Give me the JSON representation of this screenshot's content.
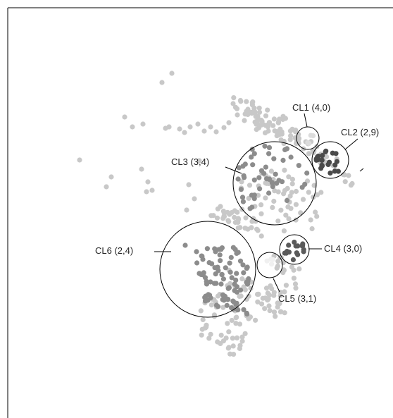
{
  "clusters": [
    {
      "id": "CL1",
      "label": "CL1 (4,0)",
      "shade": "#dcdcdc"
    },
    {
      "id": "CL2",
      "label": "CL2 (2,9)",
      "shade": "#4a4a4a"
    },
    {
      "id": "CL3",
      "label": "CL3 (3,4)",
      "shade": "#8c8c8c"
    },
    {
      "id": "CL4",
      "label": "CL4 (3,0)",
      "shade": "#5a5a5a"
    },
    {
      "id": "CL5",
      "label": "CL5 (3,1)",
      "shade": "#f0f0f0"
    },
    {
      "id": "CL6",
      "label": "CL6 (2,4)",
      "shade": "#8c8c8c"
    }
  ],
  "colors": {
    "background_points": "#c8c8c8",
    "mid_points": "#8c8c8c",
    "dark_points": "#4a4a4a"
  }
}
